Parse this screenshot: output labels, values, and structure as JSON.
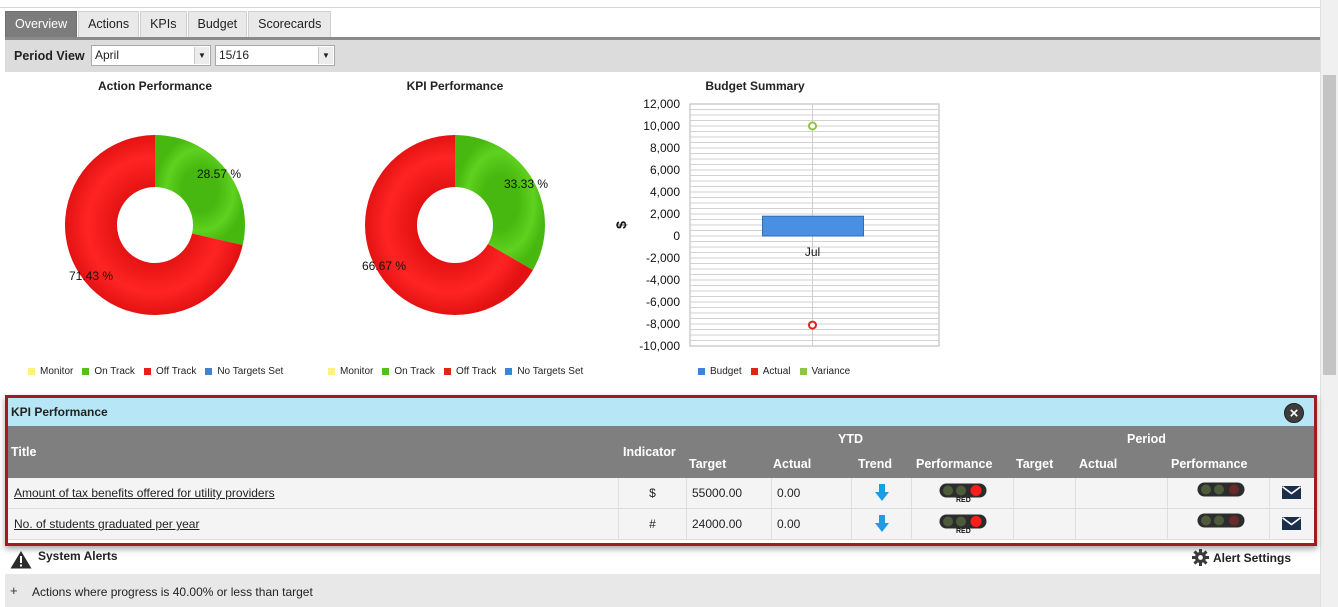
{
  "tabs": [
    {
      "label": "Overview",
      "active": true
    },
    {
      "label": "Actions",
      "active": false
    },
    {
      "label": "KPIs",
      "active": false
    },
    {
      "label": "Budget",
      "active": false
    },
    {
      "label": "Scorecards",
      "active": false
    }
  ],
  "period": {
    "label": "Period View",
    "month": "April",
    "year": "15/16"
  },
  "legend_rag": [
    {
      "label": "Monitor",
      "color": "#fff27a"
    },
    {
      "label": "On Track",
      "color": "#55c01a"
    },
    {
      "label": "Off Track",
      "color": "#e2231a"
    },
    {
      "label": "No Targets Set",
      "color": "#3a85d8"
    }
  ],
  "legend_budget": [
    {
      "label": "Budget",
      "color": "#3a85d8"
    },
    {
      "label": "Actual",
      "color": "#e2231a"
    },
    {
      "label": "Variance",
      "color": "#8dc63f"
    }
  ],
  "chart_data": [
    {
      "type": "pie",
      "title": "Action Performance",
      "labels": [
        "On Track",
        "Off Track"
      ],
      "values": [
        28.57,
        71.43
      ],
      "value_labels": [
        "28.57 %",
        "71.43 %"
      ],
      "colors": [
        "#5fd11f",
        "#ff2424"
      ]
    },
    {
      "type": "pie",
      "title": "KPI Performance",
      "labels": [
        "On Track",
        "Off Track"
      ],
      "values": [
        33.33,
        66.67
      ],
      "value_labels": [
        "33.33 %",
        "66.67 %"
      ],
      "colors": [
        "#5fd11f",
        "#ff2424"
      ]
    },
    {
      "type": "bar",
      "title": "Budget Summary",
      "ylabel": "$",
      "categories": [
        "Jul"
      ],
      "ylim": [
        -10000,
        12000
      ],
      "yticks": [
        "12,000",
        "10,000",
        "8,000",
        "6,000",
        "4,000",
        "2,000",
        "0",
        "-2,000",
        "-4,000",
        "-6,000",
        "-8,000",
        "-10,000"
      ],
      "series": [
        {
          "name": "Budget",
          "values": [
            1800
          ]
        },
        {
          "name": "Actual",
          "values": [
            -8100
          ]
        },
        {
          "name": "Variance",
          "values": [
            10000
          ]
        }
      ]
    }
  ],
  "kpi_panel": {
    "title": "KPI Performance",
    "headers": {
      "title": "Title",
      "indicator": "Indicator",
      "ytd": "YTD",
      "period": "Period",
      "target": "Target",
      "actual": "Actual",
      "trend": "Trend",
      "performance": "Performance"
    },
    "rows": [
      {
        "title": "Amount of tax benefits offered for utility providers",
        "indicator": "$",
        "target": "55000.00",
        "actual": "0.00",
        "status": "RED"
      },
      {
        "title": "No. of students graduated per year",
        "indicator": "#",
        "target": "24000.00",
        "actual": "0.00",
        "status": "RED"
      }
    ]
  },
  "alerts": {
    "title": "System Alerts",
    "settings_label": "Alert Settings",
    "items": [
      "Actions where progress is 40.00% or less than target"
    ]
  }
}
